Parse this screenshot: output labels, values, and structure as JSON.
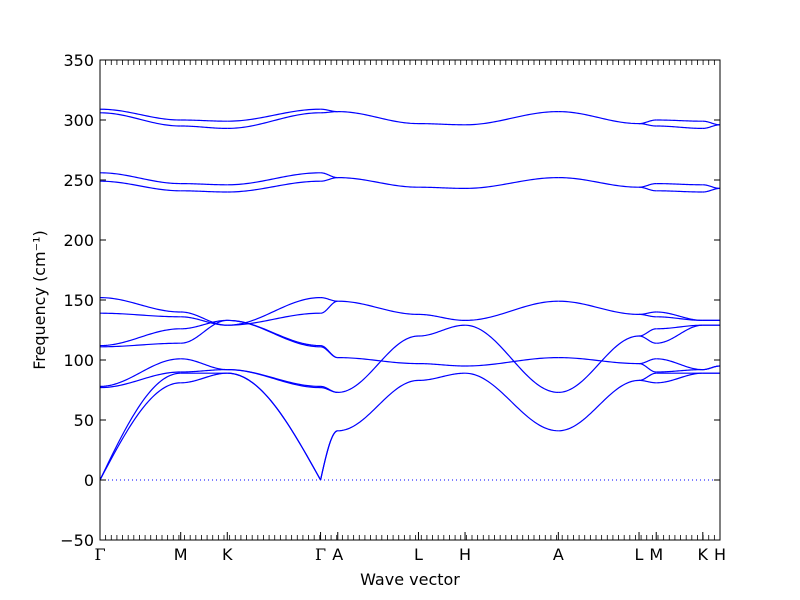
{
  "chart_data": {
    "type": "line",
    "title": "",
    "xlabel": "Wave vector",
    "ylabel": "Frequency (cm⁻¹)",
    "ylim": [
      -50,
      350
    ],
    "yticks": [
      -50,
      0,
      50,
      100,
      150,
      200,
      250,
      300,
      350
    ],
    "grid": false,
    "legend": "none",
    "colors": {
      "band": "#0000ff",
      "zero_line": "#0000ff"
    },
    "high_symmetry_points": [
      {
        "label": "Γ",
        "x": 0.0
      },
      {
        "label": "M",
        "x": 0.577
      },
      {
        "label": "K",
        "x": 0.91
      },
      {
        "label": "Γ",
        "x": 1.577
      },
      {
        "label": "A",
        "x": 1.7
      },
      {
        "label": "L",
        "x": 2.277
      },
      {
        "label": "H",
        "x": 2.61
      },
      {
        "label": "A",
        "x": 3.277
      },
      {
        "label": "L",
        "x": 3.854
      },
      {
        "label": "M",
        "x": 3.977
      },
      {
        "label": "K",
        "x": 4.31
      },
      {
        "label": "H",
        "x": 4.433
      }
    ],
    "segments": [
      {
        "from": "Γ",
        "to": "M",
        "bands": [
          [
            0,
            81
          ],
          [
            0,
            89
          ],
          [
            77,
            90
          ],
          [
            78,
            101
          ],
          [
            111,
            114
          ],
          [
            112,
            126
          ],
          [
            139,
            136
          ],
          [
            152,
            140
          ],
          [
            249,
            241
          ],
          [
            256,
            247
          ],
          [
            306,
            295
          ],
          [
            309,
            300
          ]
        ]
      },
      {
        "from": "M",
        "to": "K",
        "bands": [
          [
            81,
            89
          ],
          [
            89,
            89
          ],
          [
            90,
            92
          ],
          [
            101,
            92
          ],
          [
            114,
            133
          ],
          [
            126,
            133
          ],
          [
            136,
            129
          ],
          [
            140,
            129
          ],
          [
            241,
            240
          ],
          [
            247,
            246
          ],
          [
            295,
            293
          ],
          [
            300,
            299
          ]
        ]
      },
      {
        "from": "K",
        "to": "Γ",
        "bands": [
          [
            89,
            0
          ],
          [
            89,
            0
          ],
          [
            92,
            77
          ],
          [
            92,
            78
          ],
          [
            133,
            111
          ],
          [
            133,
            112
          ],
          [
            129,
            139
          ],
          [
            129,
            152
          ],
          [
            240,
            249
          ],
          [
            246,
            256
          ],
          [
            293,
            306
          ],
          [
            299,
            309
          ]
        ]
      },
      {
        "from": "Γ",
        "to": "A",
        "bands": [
          [
            0,
            41
          ],
          [
            0,
            41
          ],
          [
            77,
            73
          ],
          [
            78,
            73
          ],
          [
            111,
            102
          ],
          [
            112,
            102
          ],
          [
            139,
            149
          ],
          [
            152,
            149
          ],
          [
            249,
            252
          ],
          [
            256,
            252
          ],
          [
            306,
            307
          ],
          [
            309,
            307
          ]
        ]
      },
      {
        "from": "A",
        "to": "L",
        "bands": [
          [
            41,
            83
          ],
          [
            73,
            120
          ],
          [
            102,
            97
          ],
          [
            149,
            138
          ],
          [
            252,
            244
          ],
          [
            307,
            297
          ]
        ]
      },
      {
        "from": "L",
        "to": "H",
        "bands": [
          [
            83,
            89
          ],
          [
            120,
            129
          ],
          [
            97,
            95
          ],
          [
            138,
            133
          ],
          [
            244,
            243
          ],
          [
            297,
            296
          ]
        ]
      },
      {
        "from": "H",
        "to": "A",
        "bands": [
          [
            89,
            41
          ],
          [
            129,
            73
          ],
          [
            95,
            102
          ],
          [
            133,
            149
          ],
          [
            243,
            252
          ],
          [
            296,
            307
          ]
        ]
      },
      {
        "from": "A",
        "to": "L",
        "bands": [
          [
            41,
            83
          ],
          [
            73,
            120
          ],
          [
            102,
            97
          ],
          [
            149,
            138
          ],
          [
            252,
            244
          ],
          [
            307,
            297
          ]
        ]
      },
      {
        "from": "L",
        "to": "M",
        "bands": [
          [
            83,
            81
          ],
          [
            83,
            89
          ],
          [
            97,
            90
          ],
          [
            97,
            101
          ],
          [
            120,
            114
          ],
          [
            120,
            126
          ],
          [
            138,
            136
          ],
          [
            138,
            140
          ],
          [
            244,
            241
          ],
          [
            244,
            247
          ],
          [
            297,
            295
          ],
          [
            297,
            300
          ]
        ]
      },
      {
        "from": "M",
        "to": "K",
        "bands": [
          [
            81,
            89
          ],
          [
            89,
            89
          ],
          [
            90,
            92
          ],
          [
            101,
            92
          ],
          [
            114,
            129
          ],
          [
            126,
            129
          ],
          [
            136,
            133
          ],
          [
            140,
            133
          ],
          [
            241,
            240
          ],
          [
            247,
            246
          ],
          [
            295,
            293
          ],
          [
            300,
            299
          ]
        ]
      },
      {
        "from": "K",
        "to": "H",
        "bands": [
          [
            89,
            89
          ],
          [
            89,
            89
          ],
          [
            92,
            95
          ],
          [
            92,
            95
          ],
          [
            129,
            129
          ],
          [
            129,
            129
          ],
          [
            133,
            133
          ],
          [
            133,
            133
          ],
          [
            240,
            243
          ],
          [
            246,
            243
          ],
          [
            293,
            296
          ],
          [
            299,
            296
          ]
        ]
      }
    ]
  }
}
